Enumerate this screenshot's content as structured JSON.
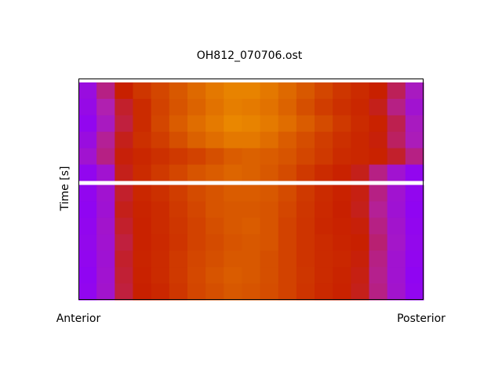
{
  "chart_data": {
    "type": "heatmap",
    "title": "OH812_070706.ost",
    "y_label": "Time [s]",
    "x_start_label": "Anterior",
    "x_end_label": "Posterior",
    "colormap": [
      [
        0,
        "#8a00ff"
      ],
      [
        0.25,
        "#b020b0"
      ],
      [
        0.45,
        "#c82000"
      ],
      [
        0.7,
        "#d85800"
      ],
      [
        1,
        "#f09800"
      ]
    ],
    "null_color": "#ffffff",
    "values": [
      null,
      [
        0.1,
        0.3,
        0.45,
        0.55,
        0.62,
        0.7,
        0.78,
        0.85,
        0.9,
        0.9,
        0.85,
        0.78,
        0.7,
        0.62,
        0.55,
        0.5,
        0.45,
        0.35,
        0.2
      ],
      [
        0.08,
        0.25,
        0.4,
        0.5,
        0.6,
        0.68,
        0.75,
        0.82,
        0.88,
        0.86,
        0.82,
        0.75,
        0.66,
        0.58,
        0.52,
        0.48,
        0.42,
        0.3,
        0.15
      ],
      [
        0.05,
        0.2,
        0.38,
        0.5,
        0.62,
        0.72,
        0.8,
        0.86,
        0.92,
        0.9,
        0.86,
        0.8,
        0.72,
        0.64,
        0.56,
        0.5,
        0.46,
        0.36,
        0.2
      ],
      [
        0.1,
        0.28,
        0.42,
        0.52,
        0.58,
        0.66,
        0.74,
        0.8,
        0.85,
        0.85,
        0.8,
        0.72,
        0.65,
        0.58,
        0.52,
        0.48,
        0.44,
        0.34,
        0.22
      ],
      [
        0.15,
        0.3,
        0.44,
        0.48,
        0.52,
        0.56,
        0.6,
        0.66,
        0.72,
        0.74,
        0.72,
        0.68,
        0.62,
        0.56,
        0.5,
        0.48,
        0.46,
        0.4,
        0.3
      ],
      [
        0.05,
        0.15,
        0.42,
        0.5,
        0.56,
        0.62,
        0.68,
        0.72,
        0.76,
        0.74,
        0.7,
        0.64,
        0.56,
        0.5,
        0.46,
        0.42,
        0.3,
        0.15,
        0.05
      ],
      null,
      [
        0.05,
        0.15,
        0.4,
        0.48,
        0.52,
        0.58,
        0.64,
        0.68,
        0.72,
        0.72,
        0.7,
        0.64,
        0.56,
        0.5,
        0.46,
        0.43,
        0.3,
        0.15,
        0.05
      ],
      [
        0.04,
        0.14,
        0.42,
        0.47,
        0.5,
        0.56,
        0.62,
        0.68,
        0.7,
        0.7,
        0.68,
        0.62,
        0.55,
        0.49,
        0.45,
        0.42,
        0.28,
        0.14,
        0.04
      ],
      [
        0.05,
        0.16,
        0.4,
        0.46,
        0.5,
        0.55,
        0.6,
        0.66,
        0.7,
        0.72,
        0.68,
        0.6,
        0.54,
        0.48,
        0.46,
        0.44,
        0.3,
        0.16,
        0.05
      ],
      [
        0.06,
        0.15,
        0.38,
        0.46,
        0.49,
        0.54,
        0.6,
        0.64,
        0.68,
        0.7,
        0.68,
        0.6,
        0.54,
        0.5,
        0.47,
        0.45,
        0.32,
        0.17,
        0.06
      ],
      [
        0.05,
        0.14,
        0.4,
        0.47,
        0.5,
        0.56,
        0.62,
        0.66,
        0.7,
        0.7,
        0.66,
        0.6,
        0.54,
        0.5,
        0.48,
        0.44,
        0.3,
        0.15,
        0.05
      ],
      [
        0.04,
        0.15,
        0.39,
        0.46,
        0.5,
        0.56,
        0.63,
        0.68,
        0.72,
        0.7,
        0.66,
        0.6,
        0.55,
        0.5,
        0.47,
        0.43,
        0.29,
        0.15,
        0.04
      ],
      [
        0.05,
        0.16,
        0.38,
        0.45,
        0.48,
        0.55,
        0.62,
        0.66,
        0.7,
        0.68,
        0.65,
        0.6,
        0.54,
        0.49,
        0.46,
        0.42,
        0.3,
        0.16,
        0.05
      ]
    ]
  }
}
